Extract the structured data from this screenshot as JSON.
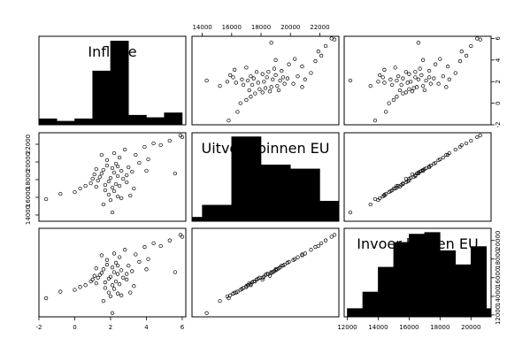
{
  "chart_data": {
    "type": "scatter",
    "matrix": "pairs",
    "variables": [
      "Inflatie",
      "Uitvoer binnen EU",
      "Invoer binnen EU"
    ],
    "grid": false,
    "axes": [
      {
        "name": "Inflatie",
        "lim": [
          -2,
          6.2
        ],
        "ticks": [
          -2,
          0,
          2,
          4,
          6
        ],
        "histogram": {
          "breaks": [
            -2,
            -1,
            0,
            1,
            2,
            3,
            4,
            5,
            6
          ],
          "counts": [
            1,
            0.6,
            1,
            9,
            14,
            1.6,
            1.2,
            2
          ],
          "ymax": 14.8
        }
      },
      {
        "name": "Uitvoer binnen EU",
        "lim": [
          13300,
          23300
        ],
        "ticks": [
          14000,
          16000,
          18000,
          20000,
          22000
        ],
        "histogram": {
          "breaks": [
            12500,
            14000,
            16000,
            18000,
            20000,
            22000,
            24000
          ],
          "counts": [
            1,
            4,
            21,
            14,
            13,
            5
          ],
          "ymax": 22
        }
      },
      {
        "name": "Invoer binnen EU",
        "lim": [
          11800,
          21300
        ],
        "ticks": [
          12000,
          14000,
          16000,
          18000,
          20000
        ],
        "histogram": {
          "breaks": [
            12000,
            13000,
            14000,
            15000,
            16000,
            17000,
            18000,
            19000,
            20000,
            21000,
            22000
          ],
          "counts": [
            1,
            3,
            6,
            9,
            10,
            10.2,
            8,
            6.3,
            8.5,
            1
          ],
          "ymax": 10.7
        }
      }
    ],
    "points": [
      [
        -1.6,
        15800,
        13800
      ],
      [
        -0.8,
        16400,
        14500
      ],
      [
        0.0,
        16600,
        14700
      ],
      [
        0.3,
        17000,
        15000
      ],
      [
        0.6,
        17300,
        15200
      ],
      [
        0.9,
        17600,
        15600
      ],
      [
        1.0,
        18100,
        15800
      ],
      [
        1.1,
        18600,
        16200
      ],
      [
        1.2,
        17200,
        15400
      ],
      [
        1.3,
        17900,
        16000
      ],
      [
        1.4,
        18300,
        16300
      ],
      [
        1.5,
        18700,
        16500
      ],
      [
        1.6,
        15200,
        13500
      ],
      [
        1.6,
        19100,
        16900
      ],
      [
        1.7,
        16800,
        14900
      ],
      [
        1.7,
        17400,
        15500
      ],
      [
        1.8,
        19600,
        17400
      ],
      [
        1.8,
        20200,
        17900
      ],
      [
        1.9,
        16300,
        14400
      ],
      [
        1.9,
        17800,
        15900
      ],
      [
        2.0,
        18200,
        16100
      ],
      [
        2.0,
        15700,
        14000
      ],
      [
        2.1,
        19300,
        17100
      ],
      [
        2.1,
        17100,
        15200
      ],
      [
        2.2,
        18800,
        16600
      ],
      [
        2.2,
        16700,
        14800
      ],
      [
        2.2,
        21000,
        18600
      ],
      [
        2.3,
        17500,
        15600
      ],
      [
        2.3,
        19800,
        17600
      ],
      [
        2.4,
        16100,
        14300
      ],
      [
        2.4,
        18400,
        16400
      ],
      [
        2.5,
        20500,
        18200
      ],
      [
        2.5,
        17300,
        15300
      ],
      [
        2.6,
        19000,
        16800
      ],
      [
        2.6,
        15900,
        14100
      ],
      [
        2.7,
        18100,
        16000
      ],
      [
        2.8,
        21400,
        19000
      ],
      [
        2.9,
        17700,
        15800
      ],
      [
        3.0,
        19400,
        17300
      ],
      [
        3.1,
        16200,
        14400
      ],
      [
        3.2,
        18900,
        16700
      ],
      [
        3.4,
        20800,
        18500
      ],
      [
        3.6,
        19900,
        17700
      ],
      [
        3.9,
        21700,
        19300
      ],
      [
        4.1,
        20300,
        18000
      ],
      [
        4.4,
        22100,
        19700
      ],
      [
        4.8,
        21900,
        19400
      ],
      [
        5.3,
        22400,
        20000
      ],
      [
        5.6,
        18700,
        16600
      ],
      [
        5.9,
        23000,
        20600
      ],
      [
        6.0,
        22800,
        20400
      ],
      [
        1.2,
        19200,
        17000
      ],
      [
        2.9,
        18500,
        16400
      ],
      [
        1.5,
        20800,
        18400
      ],
      [
        2.1,
        14300,
        12200
      ],
      [
        3.3,
        17000,
        15100
      ],
      [
        4.0,
        19000,
        16900
      ],
      [
        2.4,
        19500,
        17300
      ]
    ]
  }
}
